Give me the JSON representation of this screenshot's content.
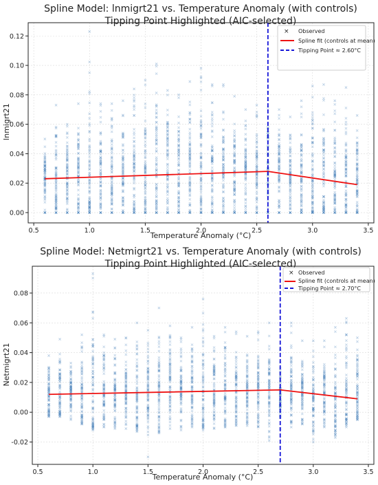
{
  "chart_data": [
    {
      "type": "scatter",
      "title": "Spline Model: lnmigrt21 vs. Temperature Anomaly (with controls)",
      "subtitle": "Tipping Point Highlighted (AIC-selected)",
      "xlabel": "Temperature Anomaly (°C)",
      "ylabel": "lnmigrt21",
      "xlim": [
        0.45,
        3.55
      ],
      "ylim": [
        -0.007,
        0.129
      ],
      "x_ticks": [
        0.5,
        1.0,
        1.5,
        2.0,
        2.5,
        3.0,
        3.5
      ],
      "x_tick_labels": [
        "0.5",
        "1.0",
        "1.5",
        "2.0",
        "2.5",
        "3.0",
        "3.5"
      ],
      "y_ticks": [
        0.0,
        0.02,
        0.04,
        0.06,
        0.08,
        0.1,
        0.12
      ],
      "y_tick_labels": [
        "0.00",
        "0.02",
        "0.04",
        "0.06",
        "0.08",
        "0.10",
        "0.12"
      ],
      "grid": true,
      "legend_position": "top-right",
      "legend": [
        "Observed",
        "Spline fit (controls at mean)",
        "Tipping Point ≈ 2.60°C"
      ],
      "tipping_point": 2.6,
      "spline_fit": {
        "x": [
          0.6,
          2.6,
          3.4
        ],
        "y": [
          0.023,
          0.028,
          0.019
        ]
      },
      "observed": {
        "x_values": [
          0.6,
          0.7,
          0.8,
          0.9,
          1.0,
          1.1,
          1.2,
          1.3,
          1.4,
          1.5,
          1.6,
          1.7,
          1.8,
          1.9,
          2.0,
          2.1,
          2.2,
          2.3,
          2.4,
          2.5,
          2.6,
          2.7,
          2.8,
          2.9,
          3.0,
          3.1,
          3.2,
          3.3,
          3.4
        ],
        "y_center": [
          0.026,
          0.024,
          0.025,
          0.026,
          0.027,
          0.027,
          0.028,
          0.028,
          0.028,
          0.029,
          0.029,
          0.03,
          0.03,
          0.03,
          0.03,
          0.031,
          0.031,
          0.031,
          0.031,
          0.032,
          0.032,
          0.028,
          0.027,
          0.026,
          0.025,
          0.025,
          0.023,
          0.024,
          0.022
        ],
        "y_max": [
          0.05,
          0.073,
          0.06,
          0.074,
          0.123,
          0.074,
          0.074,
          0.076,
          0.084,
          0.09,
          0.101,
          0.083,
          0.08,
          0.089,
          0.098,
          0.087,
          0.087,
          0.079,
          0.07,
          0.073,
          0.082,
          0.07,
          0.065,
          0.076,
          0.086,
          0.087,
          0.076,
          0.085,
          0.066
        ],
        "y_min": [
          0.0,
          0.0,
          0.0,
          0.0,
          0.0,
          0.0,
          0.0,
          0.0,
          0.0,
          0.0,
          0.0,
          0.0,
          0.0,
          0.0,
          0.0,
          0.0,
          0.0,
          0.0,
          0.0,
          0.0,
          0.0,
          0.0,
          0.0,
          0.0,
          0.0,
          0.0,
          0.0,
          0.0,
          0.0
        ]
      },
      "colors": {
        "observed": "#4f87bd",
        "spline": "#ee1111",
        "tipping": "#1515d8"
      }
    },
    {
      "type": "scatter",
      "title": "Spline Model: Netmigrt21 vs. Temperature Anomaly (with controls)",
      "subtitle": "Tipping Point Highlighted (AIC-selected)",
      "xlabel": "Temperature Anomaly (°C)",
      "ylabel": "Netmigrt21",
      "xlim": [
        0.45,
        3.55
      ],
      "ylim": [
        -0.035,
        0.098
      ],
      "x_ticks": [
        0.5,
        1.0,
        1.5,
        2.0,
        2.5,
        3.0,
        3.5
      ],
      "x_tick_labels": [
        "0.5",
        "1.0",
        "1.5",
        "2.0",
        "2.5",
        "3.0",
        "3.5"
      ],
      "y_ticks": [
        -0.02,
        0.0,
        0.02,
        0.04,
        0.06,
        0.08
      ],
      "y_tick_labels": [
        "-0.02",
        "0.00",
        "0.02",
        "0.04",
        "0.06",
        "0.08"
      ],
      "grid": true,
      "legend_position": "top-right",
      "legend": [
        "Observed",
        "Spline fit (controls at mean)",
        "Tipping Point ≈ 2.70°C"
      ],
      "tipping_point": 2.7,
      "spline_fit": {
        "x": [
          0.6,
          2.7,
          3.4
        ],
        "y": [
          0.012,
          0.015,
          0.009
        ]
      },
      "observed": {
        "x_values": [
          0.6,
          0.7,
          0.8,
          0.9,
          1.0,
          1.1,
          1.2,
          1.3,
          1.4,
          1.5,
          1.6,
          1.7,
          1.8,
          1.9,
          2.0,
          2.1,
          2.2,
          2.3,
          2.4,
          2.5,
          2.6,
          2.7,
          2.8,
          2.9,
          3.0,
          3.1,
          3.2,
          3.3,
          3.4
        ],
        "y_center": [
          0.013,
          0.012,
          0.013,
          0.013,
          0.013,
          0.013,
          0.013,
          0.013,
          0.013,
          0.014,
          0.014,
          0.014,
          0.014,
          0.014,
          0.014,
          0.015,
          0.015,
          0.015,
          0.015,
          0.015,
          0.015,
          0.014,
          0.014,
          0.013,
          0.012,
          0.012,
          0.011,
          0.011,
          0.01
        ],
        "y_max": [
          0.038,
          0.049,
          0.033,
          0.052,
          0.093,
          0.052,
          0.049,
          0.05,
          0.06,
          0.055,
          0.07,
          0.058,
          0.05,
          0.057,
          0.076,
          0.051,
          0.057,
          0.054,
          0.051,
          0.054,
          0.06,
          0.042,
          0.06,
          0.048,
          0.048,
          0.048,
          0.057,
          0.063,
          0.05
        ],
        "y_max_neg": [
          -0.003,
          -0.003,
          -0.005,
          -0.008,
          -0.012,
          -0.01,
          -0.011,
          -0.011,
          -0.013,
          -0.03,
          -0.014,
          -0.011,
          -0.012,
          -0.01,
          -0.012,
          -0.011,
          -0.01,
          -0.009,
          -0.009,
          -0.01,
          -0.019,
          -0.011,
          -0.01,
          -0.008,
          -0.02,
          -0.01,
          -0.017,
          -0.01,
          -0.005
        ]
      },
      "colors": {
        "observed": "#4f87bd",
        "spline": "#ee1111",
        "tipping": "#1515d8"
      }
    }
  ]
}
